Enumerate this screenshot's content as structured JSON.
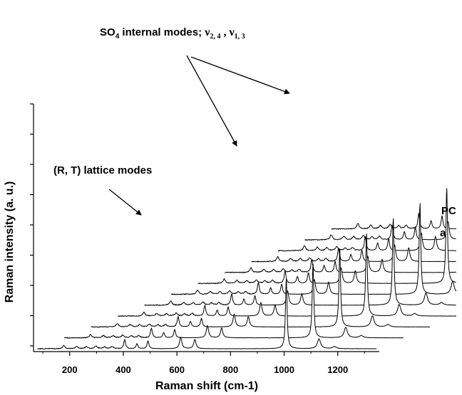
{
  "chart_data": {
    "type": "line",
    "subtype": "waterfall-stacked-spectra",
    "xlabel": "Raman shift (cm-1)",
    "ylabel": "Raman intensity (a. u.)",
    "xlim": [
      65,
      1355
    ],
    "x_ticks": [
      200,
      400,
      600,
      800,
      1000,
      1200
    ],
    "y_tick_count": 9,
    "y_tick_labels_shown": false,
    "grid": false,
    "spectrum_count": 12,
    "series_labels": [
      "a",
      "PC"
    ],
    "peaks": [
      {
        "x": 178,
        "h": 0.045,
        "w": 5
      },
      {
        "x": 226,
        "h": 0.03,
        "w": 6
      },
      {
        "x": 262,
        "h": 0.028,
        "w": 6
      },
      {
        "x": 298,
        "h": 0.035,
        "w": 6
      },
      {
        "x": 330,
        "h": 0.025,
        "w": 6
      },
      {
        "x": 358,
        "h": 0.03,
        "w": 6
      },
      {
        "x": 405,
        "h": 0.13,
        "w": 4
      },
      {
        "x": 451,
        "h": 0.07,
        "w": 4
      },
      {
        "x": 492,
        "h": 0.11,
        "w": 4
      },
      {
        "x": 614,
        "h": 0.16,
        "w": 5
      },
      {
        "x": 667,
        "h": 0.13,
        "w": 5
      },
      {
        "x": 1008,
        "h": 1.0,
        "w": 3.5
      },
      {
        "x": 1130,
        "h": 0.14,
        "w": 7
      },
      {
        "x": 1188,
        "h": 0.03,
        "w": 8
      }
    ],
    "annotations": [
      {
        "text": "SO4 internal modes; ν2, 4 , ν1, 3"
      },
      {
        "text": "(R, T) lattice modes"
      }
    ],
    "spectrum_labels": {
      "top": "PC",
      "second": "a"
    }
  },
  "annotation_text": {
    "so4_main": "SO",
    "so4_sub": "4",
    "so4_rest": " internal modes; ",
    "nu1": "ν",
    "nu1_sub": "2, 4",
    "sep": " , ",
    "nu2": "ν",
    "nu2_sub": "1, 3",
    "lattice": "(R, T) lattice modes"
  }
}
